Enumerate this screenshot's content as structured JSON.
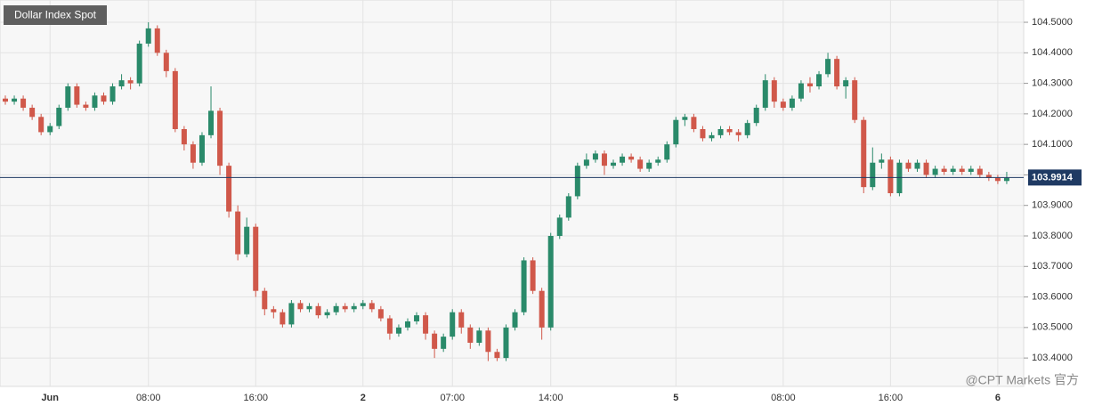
{
  "chart_data": {
    "type": "candlestick",
    "title": "Dollar Index Spot",
    "watermark": "@CPT Markets 官方",
    "categories": [
      null,
      null,
      null,
      null,
      null,
      "Jun",
      null,
      null,
      null,
      null,
      null,
      null,
      null,
      null,
      null,
      null,
      "08:00",
      null,
      null,
      null,
      null,
      null,
      null,
      null,
      null,
      null,
      null,
      null,
      "16:00",
      null,
      null,
      null,
      null,
      null,
      null,
      null,
      null,
      null,
      null,
      null,
      "2",
      null,
      null,
      null,
      null,
      null,
      null,
      null,
      null,
      null,
      "07:00",
      null,
      null,
      null,
      null,
      null,
      null,
      null,
      null,
      null,
      null,
      "14:00",
      null,
      null,
      null,
      null,
      null,
      null,
      null,
      null,
      null,
      null,
      null,
      null,
      null,
      "5",
      null,
      null,
      null,
      null,
      null,
      null,
      null,
      null,
      null,
      null,
      null,
      "08:00",
      null,
      null,
      null,
      null,
      null,
      null,
      null,
      null,
      null,
      null,
      null,
      "16:00",
      null,
      null,
      null,
      null,
      null,
      null,
      null,
      null,
      null,
      null,
      null,
      "6",
      null
    ],
    "open": [
      104.25,
      104.24,
      104.25,
      104.22,
      104.19,
      104.14,
      104.16,
      104.22,
      104.29,
      104.23,
      104.22,
      104.26,
      104.24,
      104.29,
      104.31,
      104.3,
      104.43,
      104.48,
      104.4,
      104.34,
      104.15,
      104.1,
      104.04,
      104.13,
      104.21,
      104.03,
      103.88,
      103.74,
      103.83,
      103.62,
      103.56,
      103.55,
      103.51,
      103.58,
      103.56,
      103.57,
      103.54,
      103.55,
      103.57,
      103.56,
      103.57,
      103.58,
      103.56,
      103.53,
      103.48,
      103.5,
      103.52,
      103.54,
      103.48,
      103.43,
      103.47,
      103.55,
      103.5,
      103.45,
      103.49,
      103.42,
      103.4,
      103.5,
      103.55,
      103.72,
      103.62,
      103.5,
      103.8,
      103.86,
      103.93,
      104.03,
      104.05,
      104.07,
      104.03,
      104.04,
      104.06,
      104.05,
      104.02,
      104.04,
      104.05,
      104.1,
      104.18,
      104.19,
      104.15,
      104.12,
      104.13,
      104.15,
      104.14,
      104.13,
      104.17,
      104.22,
      104.31,
      104.24,
      104.22,
      104.25,
      104.3,
      104.29,
      104.33,
      104.38,
      104.29,
      104.31,
      104.18,
      103.96,
      104.04,
      104.05,
      103.94,
      104.04,
      104.02,
      104.04,
      104.0,
      104.02,
      104.01,
      104.02,
      104.01,
      104.02,
      104.0,
      103.99,
      103.98
    ],
    "high": [
      104.26,
      104.26,
      104.26,
      104.23,
      104.2,
      104.17,
      104.23,
      104.3,
      104.3,
      104.24,
      104.27,
      104.27,
      104.3,
      104.33,
      104.32,
      104.44,
      104.5,
      104.49,
      104.41,
      104.35,
      104.16,
      104.11,
      104.14,
      104.29,
      104.22,
      104.04,
      103.9,
      103.86,
      103.84,
      103.63,
      103.57,
      103.56,
      103.59,
      103.59,
      103.58,
      103.58,
      103.56,
      103.58,
      103.58,
      103.58,
      103.59,
      103.59,
      103.57,
      103.54,
      103.51,
      103.53,
      103.55,
      103.55,
      103.49,
      103.48,
      103.56,
      103.56,
      103.51,
      103.5,
      103.5,
      103.43,
      103.51,
      103.56,
      103.73,
      103.73,
      103.63,
      103.81,
      103.87,
      103.94,
      104.04,
      104.07,
      104.08,
      104.08,
      104.05,
      104.07,
      104.07,
      104.06,
      104.05,
      104.06,
      104.11,
      104.19,
      104.2,
      104.2,
      104.16,
      104.14,
      104.16,
      104.16,
      104.15,
      104.18,
      104.23,
      104.33,
      104.32,
      104.25,
      104.26,
      104.31,
      104.32,
      104.34,
      104.4,
      104.39,
      104.32,
      104.32,
      104.19,
      104.09,
      104.07,
      104.06,
      104.05,
      104.05,
      104.05,
      104.05,
      104.03,
      104.03,
      104.03,
      104.03,
      104.03,
      104.03,
      104.01,
      104.0,
      104.01
    ],
    "low": [
      104.23,
      104.23,
      104.21,
      104.18,
      104.13,
      104.13,
      104.15,
      104.21,
      104.22,
      104.21,
      104.21,
      104.23,
      104.23,
      104.28,
      104.28,
      104.29,
      104.42,
      104.39,
      104.32,
      104.14,
      104.08,
      104.02,
      104.03,
      104.12,
      104.0,
      103.86,
      103.72,
      103.73,
      103.6,
      103.54,
      103.53,
      103.5,
      103.5,
      103.55,
      103.55,
      103.53,
      103.53,
      103.54,
      103.55,
      103.55,
      103.56,
      103.55,
      103.52,
      103.46,
      103.47,
      103.49,
      103.51,
      103.46,
      103.4,
      103.42,
      103.46,
      103.48,
      103.43,
      103.44,
      103.39,
      103.39,
      103.39,
      103.49,
      103.54,
      103.61,
      103.46,
      103.49,
      103.79,
      103.85,
      103.92,
      104.02,
      104.04,
      104.0,
      104.02,
      104.03,
      104.04,
      104.01,
      104.01,
      104.03,
      104.04,
      104.09,
      104.16,
      104.14,
      104.11,
      104.11,
      104.12,
      104.13,
      104.11,
      104.12,
      104.16,
      104.21,
      104.22,
      104.21,
      104.21,
      104.24,
      104.27,
      104.28,
      104.32,
      104.28,
      104.25,
      104.17,
      103.94,
      103.95,
      104.02,
      103.93,
      103.93,
      104.01,
      104.01,
      103.99,
      103.99,
      104.0,
      104.0,
      104.0,
      104.0,
      103.99,
      103.98,
      103.97,
      103.97
    ],
    "close": [
      104.24,
      104.25,
      104.22,
      104.19,
      104.14,
      104.16,
      104.22,
      104.29,
      104.23,
      104.22,
      104.26,
      104.24,
      104.29,
      104.31,
      104.3,
      104.43,
      104.48,
      104.4,
      104.34,
      104.15,
      104.1,
      104.04,
      104.13,
      104.21,
      104.03,
      103.88,
      103.74,
      103.83,
      103.62,
      103.56,
      103.55,
      103.51,
      103.58,
      103.56,
      103.57,
      103.54,
      103.55,
      103.57,
      103.56,
      103.57,
      103.58,
      103.56,
      103.53,
      103.48,
      103.5,
      103.52,
      103.54,
      103.48,
      103.43,
      103.47,
      103.55,
      103.5,
      103.45,
      103.49,
      103.42,
      103.4,
      103.5,
      103.55,
      103.72,
      103.62,
      103.5,
      103.8,
      103.86,
      103.93,
      104.03,
      104.05,
      104.07,
      104.03,
      104.04,
      104.06,
      104.05,
      104.02,
      104.04,
      104.05,
      104.1,
      104.18,
      104.19,
      104.15,
      104.12,
      104.13,
      104.15,
      104.14,
      104.13,
      104.17,
      104.22,
      104.31,
      104.24,
      104.22,
      104.25,
      104.3,
      104.29,
      104.33,
      104.38,
      104.29,
      104.31,
      104.18,
      103.96,
      104.04,
      104.05,
      103.94,
      104.04,
      104.02,
      104.04,
      104.0,
      104.02,
      104.01,
      104.02,
      104.01,
      104.02,
      104.0,
      103.99,
      103.98,
      103.99
    ],
    "up_color": "#2a8a6a",
    "down_color": "#d0584a",
    "last_price": 103.9914,
    "last_price_color": "#1f3a63",
    "ylim": [
      103.307,
      104.573
    ],
    "yticks": [
      {
        "value": 103.4,
        "label": "103.4000"
      },
      {
        "value": 103.5,
        "label": "103.5000"
      },
      {
        "value": 103.6,
        "label": "103.6000"
      },
      {
        "value": 103.7,
        "label": "103.7000"
      },
      {
        "value": 103.8,
        "label": "103.8000"
      },
      {
        "value": 103.9,
        "label": "103.9000"
      },
      {
        "value": 104.0,
        "label": "104.0000"
      },
      {
        "value": 104.1,
        "label": "104.1000"
      },
      {
        "value": 104.2,
        "label": "104.2000"
      },
      {
        "value": 104.3,
        "label": "104.3000"
      },
      {
        "value": 104.4,
        "label": "104.4000"
      },
      {
        "value": 104.5,
        "label": "104.5000"
      }
    ],
    "grid": true
  }
}
